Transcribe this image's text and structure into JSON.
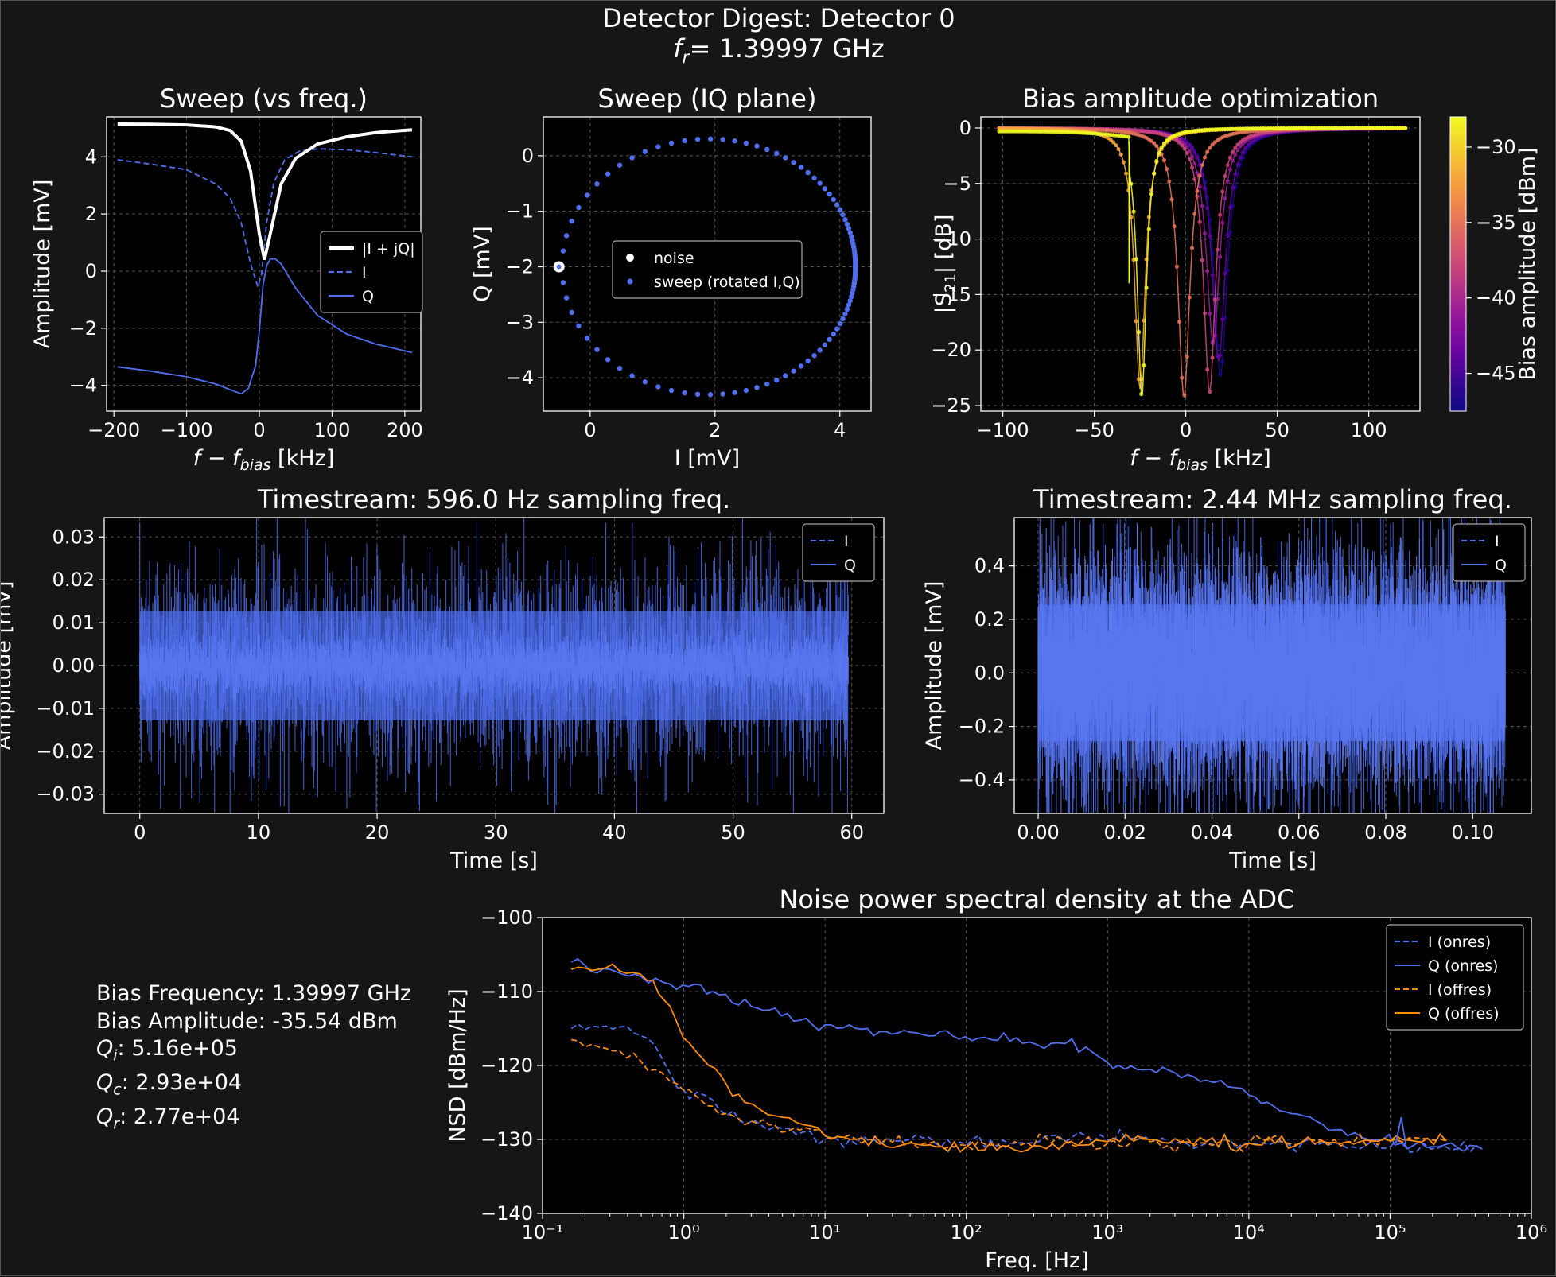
{
  "figure": {
    "title": "Detector Digest: Detector 0",
    "subtitle_prefix": "f",
    "subtitle_sub": "r",
    "subtitle_value": "= 1.39997 GHz"
  },
  "stats": {
    "bias_frequency": "Bias Frequency: 1.39997 GHz",
    "bias_amplitude": "Bias Amplitude: -35.54 dBm",
    "qi_symbol": "Q",
    "qi_sub": "i",
    "qi_value": ": 5.16e+05",
    "qc_symbol": "Q",
    "qc_sub": "c",
    "qc_value": ": 2.93e+04",
    "qr_symbol": "Q",
    "qr_sub": "r",
    "qr_value": ": 2.77e+04"
  },
  "colors": {
    "background": "#161616",
    "axes_bg": "#000000",
    "blue": "#4f6ff0",
    "orange": "#ff8c0a",
    "white": "#ffffff",
    "grid": "#555555"
  },
  "chart_data": [
    {
      "id": "sweep_freq",
      "type": "line",
      "title": "Sweep (vs freq.)",
      "xlabel": "f − f_bias [kHz]",
      "ylabel": "Amplitude [mV]",
      "xlim": [
        -210,
        222
      ],
      "ylim": [
        -4.9,
        5.4
      ],
      "xticks": [
        -200,
        -100,
        0,
        100,
        200
      ],
      "yticks": [
        -4,
        -2,
        0,
        2,
        4
      ],
      "grid": true,
      "legend": "center-right",
      "resonance": {
        "center_khz": 7,
        "halfwidth_khz": 16
      },
      "series": [
        {
          "name": "|I + jQ|",
          "style": "solid-thick",
          "color": "#ffffff",
          "x": [
            -195,
            -150,
            -100,
            -60,
            -40,
            -25,
            -12,
            0,
            7,
            15,
            30,
            50,
            80,
            120,
            160,
            210
          ],
          "y": [
            5.15,
            5.14,
            5.12,
            5.05,
            4.92,
            4.55,
            3.5,
            1.3,
            0.4,
            1.3,
            3.05,
            3.95,
            4.45,
            4.7,
            4.85,
            4.95
          ]
        },
        {
          "name": "I",
          "style": "dashed",
          "color": "#4f6ff0",
          "x": [
            -195,
            -150,
            -100,
            -60,
            -40,
            -25,
            -12,
            -2,
            3,
            10,
            20,
            35,
            55,
            80,
            120,
            160,
            210
          ],
          "y": [
            3.9,
            3.75,
            3.55,
            3.05,
            2.55,
            1.7,
            0.25,
            -0.55,
            -0.1,
            1.7,
            3.1,
            3.9,
            4.2,
            4.28,
            4.25,
            4.15,
            4.0
          ]
        },
        {
          "name": "Q",
          "style": "solid",
          "color": "#4f6ff0",
          "x": [
            -195,
            -150,
            -100,
            -60,
            -40,
            -25,
            -15,
            -5,
            0,
            5,
            10,
            15,
            22,
            30,
            50,
            80,
            120,
            160,
            210
          ],
          "y": [
            -3.35,
            -3.5,
            -3.7,
            -3.95,
            -4.15,
            -4.3,
            -4.1,
            -3.3,
            -2.1,
            -0.5,
            0.2,
            0.42,
            0.43,
            0.25,
            -0.6,
            -1.55,
            -2.2,
            -2.55,
            -2.85
          ]
        }
      ]
    },
    {
      "id": "sweep_iq",
      "type": "scatter",
      "title": "Sweep (IQ plane)",
      "xlabel": "I [mV]",
      "ylabel": "Q [mV]",
      "xlim": [
        -0.75,
        4.5
      ],
      "ylim": [
        -4.6,
        0.7
      ],
      "xticks": [
        0,
        2,
        4
      ],
      "yticks": [
        0,
        -1,
        -2,
        -3,
        -4
      ],
      "grid": true,
      "legend": "center",
      "circle": {
        "cx": 1.9,
        "cy": -2.0,
        "r": 2.35,
        "noise_angle_deg": 180,
        "dense_angle_deg": 0,
        "points": 110
      },
      "series": [
        {
          "name": "noise",
          "color": "#ffffff",
          "x": [
            -0.5
          ],
          "y": [
            -2.0
          ]
        },
        {
          "name": "sweep (rotated I,Q)",
          "color": "#4f6ff0"
        }
      ]
    },
    {
      "id": "bias_opt",
      "type": "line",
      "title": "Bias amplitude optimization",
      "xlabel": "f − f_bias [kHz]",
      "ylabel": "|S21| [dB]",
      "xlim": [
        -112,
        128
      ],
      "ylim": [
        -25.5,
        1.0
      ],
      "xticks": [
        -100,
        -50,
        0,
        50,
        100
      ],
      "yticks": [
        0,
        -5,
        -10,
        -15,
        -20,
        -25
      ],
      "grid": true,
      "colorbar": {
        "label": "Bias amplitude [dBm]",
        "range": [
          -47.5,
          -28
        ],
        "ticks": [
          -30,
          -35,
          -40,
          -45
        ]
      },
      "x_range": [
        -102,
        120
      ],
      "series": [
        {
          "name": "-28",
          "center": -24,
          "depth": 24.2,
          "width": 3,
          "jump": -31
        },
        {
          "name": "-32",
          "center": -25,
          "depth": 23.5,
          "width": 3.5
        },
        {
          "name": "-35",
          "center": -1,
          "depth": 24.2,
          "width": 4
        },
        {
          "name": "-38",
          "center": 13,
          "depth": 23.8,
          "width": 4
        },
        {
          "name": "-41",
          "center": 15,
          "depth": 19.5,
          "width": 4.5
        },
        {
          "name": "-44",
          "center": 18,
          "depth": 21.0,
          "width": 4.5
        },
        {
          "name": "-47",
          "center": 19,
          "depth": 22.3,
          "width": 4.5
        }
      ]
    },
    {
      "id": "ts_slow",
      "type": "line",
      "title": "Timestream: 596.0 Hz sampling freq.",
      "xlabel": "Time [s]",
      "ylabel": "Amplitude [mV]",
      "xlim": [
        -3,
        62.7
      ],
      "ylim": [
        -0.0345,
        0.0345
      ],
      "xticks": [
        0,
        10,
        20,
        30,
        40,
        50,
        60
      ],
      "yticks": [
        0.03,
        0.02,
        0.01,
        0.0,
        -0.01,
        -0.02,
        -0.03
      ],
      "grid": true,
      "legend": "top-right",
      "duration": 59.7,
      "series": [
        {
          "name": "I",
          "style": "dashed",
          "color": "#4f6ff0",
          "std": 0.0075
        },
        {
          "name": "Q",
          "style": "solid",
          "color": "#4f6ff0",
          "std": 0.0025
        }
      ]
    },
    {
      "id": "ts_fast",
      "type": "line",
      "title": "Timestream: 2.44 MHz sampling freq.",
      "xlabel": "Time [s]",
      "ylabel": "Amplitude [mV]",
      "xlim": [
        -0.0055,
        0.1135
      ],
      "ylim": [
        -0.525,
        0.58
      ],
      "xticks": [
        0.0,
        0.02,
        0.04,
        0.06,
        0.08,
        0.1
      ],
      "yticks": [
        0.4,
        0.2,
        0.0,
        -0.2,
        -0.4
      ],
      "grid": true,
      "legend": "top-right",
      "duration": 0.1075,
      "series": [
        {
          "name": "I",
          "style": "dashed",
          "color": "#4f6ff0",
          "std": 0.15
        },
        {
          "name": "Q",
          "style": "solid",
          "color": "#4f6ff0",
          "std": 0.15
        }
      ]
    },
    {
      "id": "nsd",
      "type": "line",
      "title": "Noise power spectral density at the ADC",
      "xlabel": "Freq. [Hz]",
      "ylabel": "NSD [dBm/Hz]",
      "xscale": "log",
      "xlim": [
        0.1,
        1000000
      ],
      "ylim": [
        -140,
        -100
      ],
      "xticks": [
        "10⁻¹",
        "10⁰",
        "10¹",
        "10²",
        "10³",
        "10⁴",
        "10⁵",
        "10⁶"
      ],
      "yticks": [
        -100,
        -110,
        -120,
        -130,
        -140
      ],
      "grid": true,
      "legend": "top-right",
      "series": [
        {
          "name": "I (onres)",
          "style": "dashed",
          "color": "#4f6ff0",
          "x": [
            0.16,
            0.25,
            0.35,
            0.5,
            0.7,
            0.9,
            1.1,
            1.4,
            1.8,
            2.5,
            3.5,
            5,
            7,
            10,
            15,
            25,
            40,
            60,
            100,
            200,
            400,
            700,
            1000,
            2000,
            5000,
            10000,
            30000,
            100000,
            300000,
            450000
          ],
          "y": [
            -115,
            -114.8,
            -114.8,
            -116,
            -119,
            -123,
            -124.5,
            -124,
            -126,
            -127.5,
            -128,
            -128.5,
            -129,
            -130,
            -130,
            -130.5,
            -130,
            -130.5,
            -130.8,
            -130.5,
            -129.5,
            -129.5,
            -130,
            -130.2,
            -130.5,
            -130.5,
            -130.8,
            -131,
            -131.3,
            -131.3
          ]
        },
        {
          "name": "Q (onres)",
          "style": "solid",
          "color": "#4f6ff0",
          "x": [
            0.16,
            0.3,
            0.5,
            0.8,
            1.2,
            1.6,
            2.2,
            3,
            4,
            6,
            10,
            20,
            40,
            80,
            150,
            250,
            400,
            700,
            900,
            1200,
            2000,
            3000,
            5000,
            8000,
            10000,
            15000,
            20000,
            30000,
            50000,
            80000,
            120000,
            200000,
            450000
          ],
          "y": [
            -106,
            -107,
            -108,
            -109,
            -109,
            -110,
            -111.5,
            -112,
            -112.5,
            -114,
            -114.5,
            -115,
            -115.5,
            -116,
            -116.5,
            -117,
            -117,
            -117.5,
            -119,
            -120,
            -120.5,
            -121,
            -122,
            -123,
            -124,
            -125.5,
            -126.5,
            -127.5,
            -129.5,
            -130,
            -130.5,
            -131,
            -131.3
          ]
        },
        {
          "name": "I (offres)",
          "style": "dashed",
          "color": "#ff8c0a",
          "x": [
            0.16,
            0.25,
            0.35,
            0.5,
            0.7,
            0.9,
            1.2,
            1.6,
            2,
            3,
            4,
            6,
            10,
            20,
            50,
            100,
            200,
            400,
            1000,
            2000,
            5000,
            10000,
            50000,
            100000,
            250000
          ],
          "y": [
            -116.5,
            -117.5,
            -118,
            -119.5,
            -121,
            -122.5,
            -124,
            -125.5,
            -126.5,
            -127.5,
            -128,
            -128.5,
            -129.5,
            -130,
            -130.5,
            -130.8,
            -130.8,
            -130.5,
            -130.5,
            -130.3,
            -130.5,
            -130.5,
            -130.3,
            -130.2,
            -130.2
          ]
        },
        {
          "name": "Q (offres)",
          "style": "solid",
          "color": "#ff8c0a",
          "x": [
            0.16,
            0.25,
            0.35,
            0.55,
            0.8,
            1.1,
            1.5,
            2,
            2.7,
            3.5,
            5,
            7,
            10,
            15,
            25,
            50,
            100,
            200,
            500,
            1000,
            2000,
            5000,
            10000,
            50000,
            100000,
            250000
          ],
          "y": [
            -107,
            -107,
            -107.2,
            -108.5,
            -112,
            -117,
            -120,
            -122.5,
            -125,
            -126,
            -127,
            -128,
            -129.5,
            -130,
            -130.5,
            -130.8,
            -131,
            -131,
            -130.5,
            -130.3,
            -130,
            -130.3,
            -130.5,
            -130.3,
            -130.2,
            -130.2
          ]
        }
      ]
    }
  ]
}
